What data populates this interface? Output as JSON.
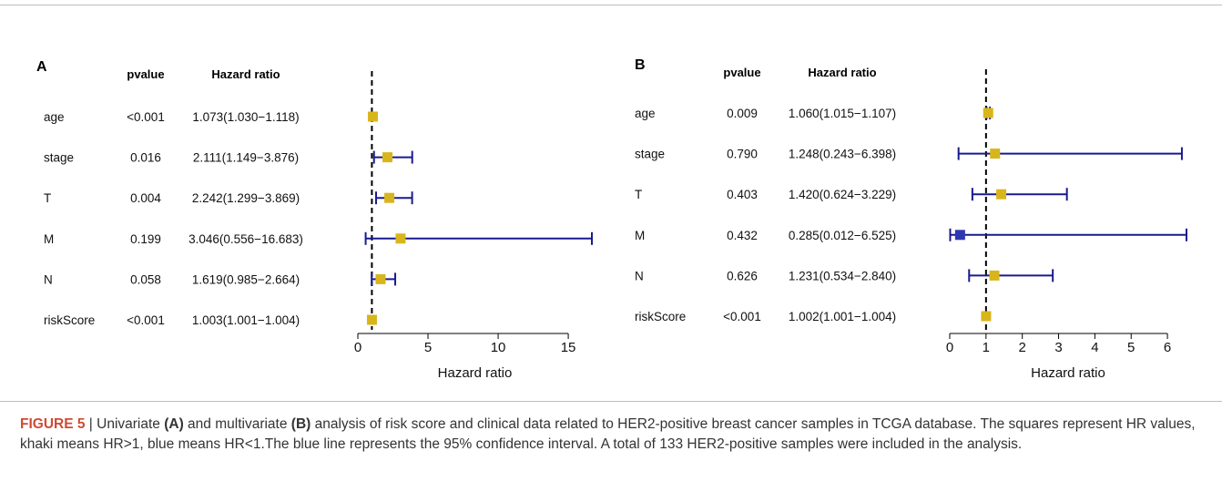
{
  "figure_label": "FIGURE 5",
  "caption": {
    "sep": " | ",
    "t1": "Univariate ",
    "a": "(A)",
    "t2": " and multivariate ",
    "b": "(B)",
    "t3": " analysis of risk score and clinical data related to HER2-positive breast cancer samples in TCGA database. The squares represent HR values, khaki means HR>1, blue means HR<1.The blue line represents the 95% confidence interval. A total of 133 HER2-positive samples were included in the analysis."
  },
  "colors": {
    "khaki": "#d9b51c",
    "blue": "#3038b0",
    "line": "#1a1a8f",
    "caption_label": "#d14a32"
  },
  "chart_data": [
    {
      "type": "forest",
      "panel": "A",
      "col_pvalue": "pvalue",
      "col_hr": "Hazard ratio",
      "xlabel": "Hazard ratio",
      "xlim": [
        0,
        16.683
      ],
      "xticks": [
        0,
        5,
        10,
        15
      ],
      "reference": 1,
      "rows": [
        {
          "name": "age",
          "pvalue": "<0.001",
          "hr_text": "1.073(1.030−1.118)",
          "hr": 1.073,
          "lo": 1.03,
          "hi": 1.118
        },
        {
          "name": "stage",
          "pvalue": "0.016",
          "hr_text": "2.111(1.149−3.876)",
          "hr": 2.111,
          "lo": 1.149,
          "hi": 3.876
        },
        {
          "name": "T",
          "pvalue": "0.004",
          "hr_text": "2.242(1.299−3.869)",
          "hr": 2.242,
          "lo": 1.299,
          "hi": 3.869
        },
        {
          "name": "M",
          "pvalue": "0.199",
          "hr_text": "3.046(0.556−16.683)",
          "hr": 3.046,
          "lo": 0.556,
          "hi": 16.683
        },
        {
          "name": "N",
          "pvalue": "0.058",
          "hr_text": "1.619(0.985−2.664)",
          "hr": 1.619,
          "lo": 0.985,
          "hi": 2.664
        },
        {
          "name": "riskScore",
          "pvalue": "<0.001",
          "hr_text": "1.003(1.001−1.004)",
          "hr": 1.003,
          "lo": 1.001,
          "hi": 1.004
        }
      ]
    },
    {
      "type": "forest",
      "panel": "B",
      "col_pvalue": "pvalue",
      "col_hr": "Hazard ratio",
      "xlabel": "Hazard ratio",
      "xlim": [
        0,
        6.525
      ],
      "xticks": [
        0,
        1,
        2,
        3,
        4,
        5,
        6
      ],
      "reference": 1,
      "rows": [
        {
          "name": "age",
          "pvalue": "0.009",
          "hr_text": "1.060(1.015−1.107)",
          "hr": 1.06,
          "lo": 1.015,
          "hi": 1.107
        },
        {
          "name": "stage",
          "pvalue": "0.790",
          "hr_text": "1.248(0.243−6.398)",
          "hr": 1.248,
          "lo": 0.243,
          "hi": 6.398
        },
        {
          "name": "T",
          "pvalue": "0.403",
          "hr_text": "1.420(0.624−3.229)",
          "hr": 1.42,
          "lo": 0.624,
          "hi": 3.229
        },
        {
          "name": "M",
          "pvalue": "0.432",
          "hr_text": "0.285(0.012−6.525)",
          "hr": 0.285,
          "lo": 0.012,
          "hi": 6.525
        },
        {
          "name": "N",
          "pvalue": "0.626",
          "hr_text": "1.231(0.534−2.840)",
          "hr": 1.231,
          "lo": 0.534,
          "hi": 2.84
        },
        {
          "name": "riskScore",
          "pvalue": "<0.001",
          "hr_text": "1.002(1.001−1.004)",
          "hr": 1.002,
          "lo": 1.001,
          "hi": 1.004
        }
      ]
    }
  ]
}
